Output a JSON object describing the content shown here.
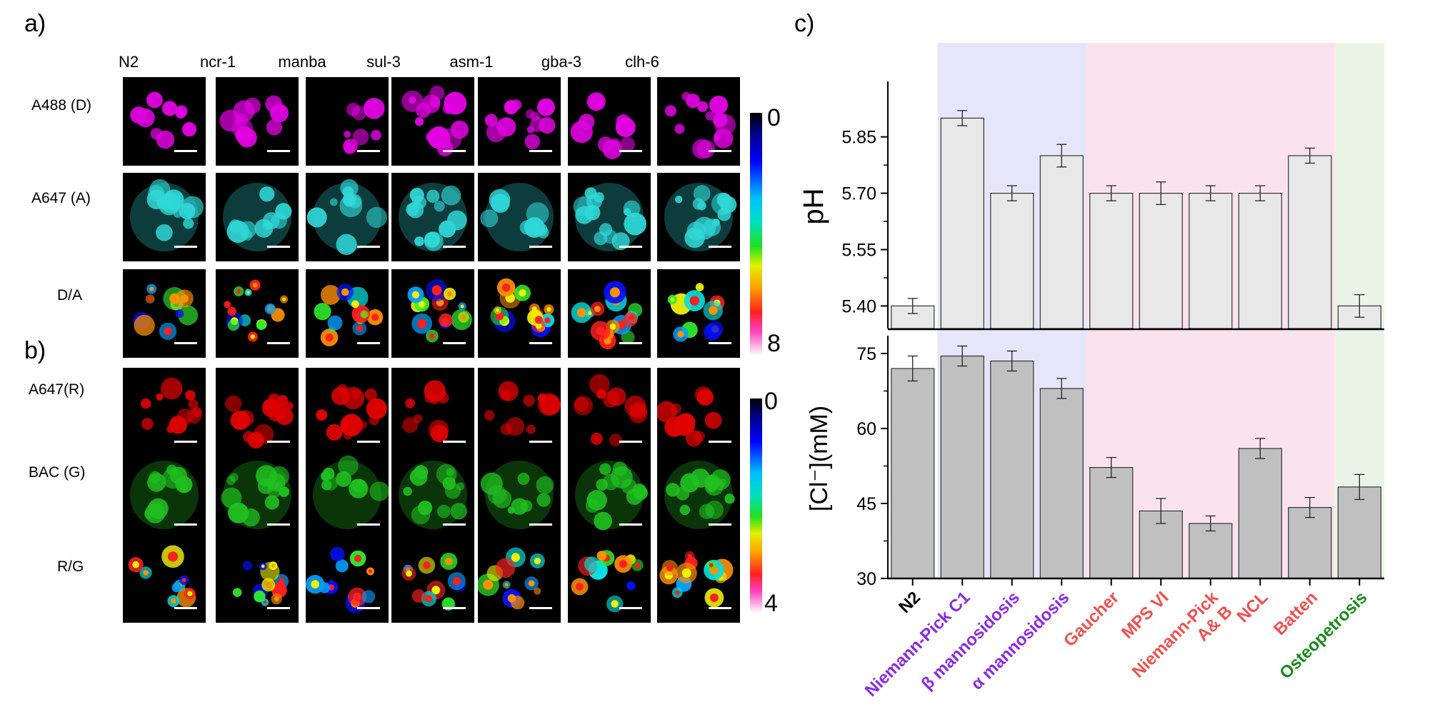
{
  "panel_labels": {
    "a": "a)",
    "b": "b)",
    "c": "c)"
  },
  "columns": [
    "N2",
    "ncr-1",
    "manba",
    "sul-3",
    "asm-1",
    "gba-3",
    "clh-6"
  ],
  "rows_a": [
    "A488 (D)",
    "A647 (A)",
    "D/A"
  ],
  "rows_b": [
    "A647(R)",
    "BAC (G)",
    "R/G"
  ],
  "colorbar_a": {
    "top": "0",
    "bottom": "8"
  },
  "colorbar_b": {
    "top": "0",
    "bottom": "4"
  },
  "channel_colors": {
    "magenta": "#e000e0",
    "cyan": "#30d8d8",
    "red": "#e00000",
    "green": "#20c020"
  },
  "region_colors": {
    "blue": "#e6e6fb",
    "pink": "#fbe3ee",
    "green": "#eaf5e8"
  },
  "chart_data": [
    {
      "type": "bar",
      "ylabel": "pH",
      "ylim": [
        5.34,
        5.99
      ],
      "yticks": [
        "5.40",
        "5.55",
        "5.70",
        "5.85"
      ],
      "categories": [
        "N2",
        "Niemann-Pick C1",
        "β mannosidosis",
        "α mannosidosis",
        "Gaucher",
        "MPS VI",
        "Niemann-Pick A& B",
        "NCL",
        "Batten",
        "Osteopetrosis"
      ],
      "values": [
        5.4,
        5.9,
        5.7,
        5.8,
        5.7,
        5.7,
        5.7,
        5.7,
        5.8,
        5.4
      ],
      "errors": [
        0.02,
        0.02,
        0.02,
        0.03,
        0.02,
        0.03,
        0.02,
        0.02,
        0.02,
        0.03
      ],
      "bar_color": "#e8e8e8"
    },
    {
      "type": "bar",
      "ylabel": "[Cl⁻](mM)",
      "ylim": [
        30,
        78
      ],
      "yticks": [
        "30",
        "45",
        "60",
        "75"
      ],
      "categories": [
        "N2",
        "Niemann-Pick C1",
        "β mannosidosis",
        "α mannosidosis",
        "Gaucher",
        "MPS VI",
        "Niemann-Pick A& B",
        "NCL",
        "Batten",
        "Osteopetrosis"
      ],
      "values": [
        72,
        74.5,
        73.5,
        68,
        52.2,
        43.5,
        41,
        56,
        44.2,
        48.3
      ],
      "errors": [
        2.5,
        2,
        2,
        2,
        2,
        2.5,
        1.5,
        2,
        2,
        2.5
      ],
      "bar_color": "#c0c0c0"
    }
  ],
  "x_labels": [
    {
      "lines": [
        "N2"
      ],
      "color": "#000000"
    },
    {
      "lines": [
        "Niemann-Pick C1"
      ],
      "color": "#8a2be2"
    },
    {
      "lines": [
        "β mannosidosis"
      ],
      "color": "#8a2be2"
    },
    {
      "lines": [
        "α mannosidosis"
      ],
      "color": "#8a2be2"
    },
    {
      "lines": [
        "Gaucher"
      ],
      "color": "#f05050"
    },
    {
      "lines": [
        "MPS VI"
      ],
      "color": "#f05050"
    },
    {
      "lines": [
        "Niemann-Pick",
        "A& B"
      ],
      "color": "#f05050"
    },
    {
      "lines": [
        "NCL"
      ],
      "color": "#f05050"
    },
    {
      "lines": [
        "Batten"
      ],
      "color": "#f05050"
    },
    {
      "lines": [
        "Osteopetrosis"
      ],
      "color": "#1a8a1a"
    }
  ]
}
